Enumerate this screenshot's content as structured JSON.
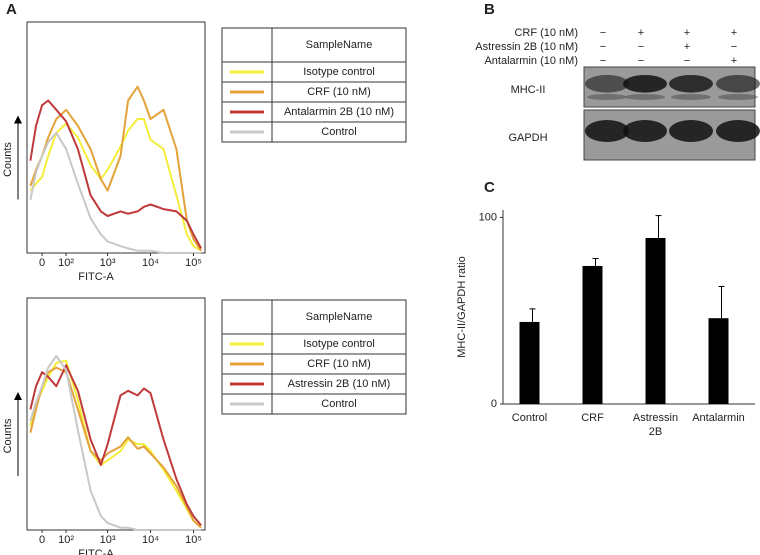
{
  "figure": {
    "panel_labels": [
      "A",
      "B",
      "C"
    ]
  },
  "blot": {
    "conditions": [
      "CRF (10 nM)",
      "Astressin 2B (10 nM)",
      "Antalarmin (10 nM)"
    ],
    "signs": [
      [
        "−",
        "+",
        "+",
        "+"
      ],
      [
        "−",
        "−",
        "+",
        "−"
      ],
      [
        "−",
        "−",
        "−",
        "+"
      ]
    ],
    "bands": [
      "MHC-II",
      "GAPDH"
    ]
  },
  "chart_data": [
    {
      "type": "line",
      "xlabel": "FITC-A",
      "ylabel": "Counts",
      "xscale": "biexponential",
      "legend_title": "SampleName",
      "x": [
        -40,
        -20,
        0,
        20,
        50,
        100,
        200,
        400,
        700,
        1000,
        2000,
        3000,
        5000,
        7000,
        10000,
        20000,
        40000,
        70000,
        100000,
        150000
      ],
      "xlim": [
        -54,
        185000
      ],
      "ylim": [
        0,
        100
      ],
      "xticks": [
        0,
        {
          "value": 100,
          "label": "10²"
        },
        {
          "value": 1000,
          "label": "10³"
        },
        {
          "value": 10000,
          "label": "10⁴"
        },
        {
          "value": 100000,
          "label": "10⁵"
        }
      ],
      "series": [
        {
          "name": "Isotype control",
          "color": "#f4ee3a",
          "values": [
            27,
            30,
            33,
            42,
            52,
            56,
            50,
            38,
            32,
            36,
            46,
            53,
            58,
            58,
            49,
            45,
            25,
            8,
            3,
            1
          ]
        },
        {
          "name": "CRF (10 nM)",
          "color": "#e3a33a",
          "values": [
            29,
            36,
            42,
            50,
            58,
            62,
            55,
            45,
            32,
            27,
            42,
            66,
            72,
            66,
            58,
            62,
            45,
            14,
            6,
            1
          ]
        },
        {
          "name": "Antalarmin 2B (10 nM)",
          "color": "#c0393b",
          "values": [
            40,
            55,
            64,
            66,
            62,
            57,
            45,
            25,
            18,
            16,
            18,
            17,
            18,
            20,
            21,
            19,
            18,
            14,
            8,
            2
          ]
        },
        {
          "name": "Control",
          "color": "#c8c8c8",
          "values": [
            23,
            35,
            42,
            48,
            52,
            45,
            30,
            15,
            8,
            5,
            3,
            2,
            1,
            1,
            1,
            0,
            0,
            0,
            0,
            0
          ]
        }
      ]
    },
    {
      "type": "line",
      "xlabel": "FITC-A",
      "ylabel": "Counts",
      "xscale": "biexponential",
      "legend_title": "SampleName",
      "x": [
        -40,
        -20,
        0,
        20,
        50,
        100,
        200,
        400,
        700,
        1000,
        2000,
        3000,
        5000,
        7000,
        10000,
        20000,
        40000,
        70000,
        100000,
        150000
      ],
      "xlim": [
        -54,
        185000
      ],
      "ylim": [
        0,
        100
      ],
      "xticks": [
        0,
        {
          "value": 100,
          "label": "10²"
        },
        {
          "value": 1000,
          "label": "10³"
        },
        {
          "value": 10000,
          "label": "10⁴"
        },
        {
          "value": 100000,
          "label": "10⁵"
        }
      ],
      "series": [
        {
          "name": "Isotype control",
          "color": "#f4ee3a",
          "values": [
            45,
            55,
            60,
            66,
            72,
            73,
            56,
            34,
            28,
            30,
            34,
            39,
            37,
            37,
            34,
            26,
            17,
            9,
            4,
            1
          ]
        },
        {
          "name": "CRF (10 nM)",
          "color": "#e3a33a",
          "values": [
            42,
            52,
            62,
            68,
            70,
            68,
            52,
            34,
            30,
            33,
            36,
            40,
            35,
            36,
            33,
            27,
            19,
            10,
            4,
            1
          ]
        },
        {
          "name": "Astressin 2B (10 nM)",
          "color": "#c0393b",
          "values": [
            52,
            62,
            68,
            66,
            62,
            71,
            60,
            39,
            28,
            37,
            58,
            60,
            58,
            61,
            59,
            39,
            22,
            11,
            6,
            2
          ]
        },
        {
          "name": "Control",
          "color": "#c8c8c8",
          "values": [
            47,
            55,
            62,
            70,
            75,
            69,
            43,
            17,
            6,
            3,
            1,
            1,
            0,
            0,
            0,
            0,
            0,
            0,
            0,
            0
          ]
        }
      ]
    },
    {
      "type": "bar",
      "ylabel": "MHC-II/GAPDH ratio",
      "categories": [
        "Control",
        "CRF",
        "Astressin 2B",
        "Antalarmin"
      ],
      "values": [
        44,
        74,
        89,
        46
      ],
      "errors": [
        7,
        4,
        12,
        17
      ],
      "color": "#000000",
      "ylim": [
        0,
        104
      ],
      "yticks": [
        0,
        100
      ]
    }
  ]
}
